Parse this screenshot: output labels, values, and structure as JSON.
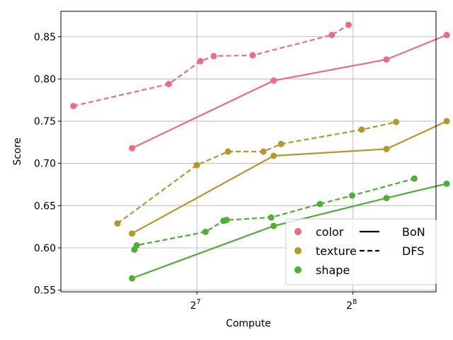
{
  "chart_data": {
    "type": "line",
    "xlabel": "Compute",
    "ylabel": "Score",
    "xscale": "log2",
    "xlim": [
      70,
      370
    ],
    "ylim": [
      0.548,
      0.88
    ],
    "grid": true,
    "x_ticks": [
      {
        "value": 128,
        "base": "2",
        "exp": "7"
      },
      {
        "value": 256,
        "base": "2",
        "exp": "8"
      }
    ],
    "y_ticks": [
      "0.55",
      "0.60",
      "0.65",
      "0.70",
      "0.75",
      "0.80",
      "0.85"
    ],
    "y_tick_values": [
      0.55,
      0.6,
      0.65,
      0.7,
      0.75,
      0.8,
      0.85
    ],
    "legend": {
      "position": "lower right",
      "colors_title": [
        "color",
        "texture",
        "shape"
      ],
      "styles": [
        {
          "label": "BoN",
          "dash": "solid"
        },
        {
          "label": "DFS",
          "dash": "dashed"
        }
      ]
    },
    "series": [
      {
        "group": "color",
        "style": "BoN",
        "color": "#ec6e7e",
        "points": [
          [
            96,
            0.718
          ],
          [
            180,
            0.798
          ],
          [
            297,
            0.823
          ],
          [
            388,
            0.852
          ]
        ]
      },
      {
        "group": "color",
        "style": "DFS",
        "color": "#ec6e7e",
        "points": [
          [
            74,
            0.768
          ],
          [
            113,
            0.794
          ],
          [
            130,
            0.821
          ],
          [
            138,
            0.827
          ],
          [
            164,
            0.828
          ],
          [
            233,
            0.852
          ],
          [
            251,
            0.864
          ]
        ]
      },
      {
        "group": "texture",
        "style": "BoN",
        "color": "#b8962e",
        "points": [
          [
            96,
            0.617
          ],
          [
            180,
            0.709
          ],
          [
            297,
            0.717
          ],
          [
            388,
            0.75
          ]
        ]
      },
      {
        "group": "texture",
        "style": "DFS",
        "color": "#b8962e",
        "points": [
          [
            90,
            0.629
          ],
          [
            128,
            0.698
          ],
          [
            147,
            0.714
          ],
          [
            172,
            0.714
          ],
          [
            186,
            0.723
          ],
          [
            266,
            0.74
          ],
          [
            310,
            0.749
          ]
        ]
      },
      {
        "group": "shape",
        "style": "BoN",
        "color": "#4daf35",
        "points": [
          [
            96,
            0.564
          ],
          [
            180,
            0.626
          ],
          [
            297,
            0.659
          ],
          [
            388,
            0.676
          ]
        ]
      },
      {
        "group": "shape",
        "style": "DFS",
        "color": "#4daf35",
        "points": [
          [
            97,
            0.598
          ],
          [
            98,
            0.603
          ],
          [
            133,
            0.619
          ],
          [
            144,
            0.632
          ],
          [
            146,
            0.633
          ],
          [
            178,
            0.636
          ],
          [
            221,
            0.652
          ],
          [
            255,
            0.662
          ],
          [
            336,
            0.682
          ]
        ]
      }
    ]
  }
}
